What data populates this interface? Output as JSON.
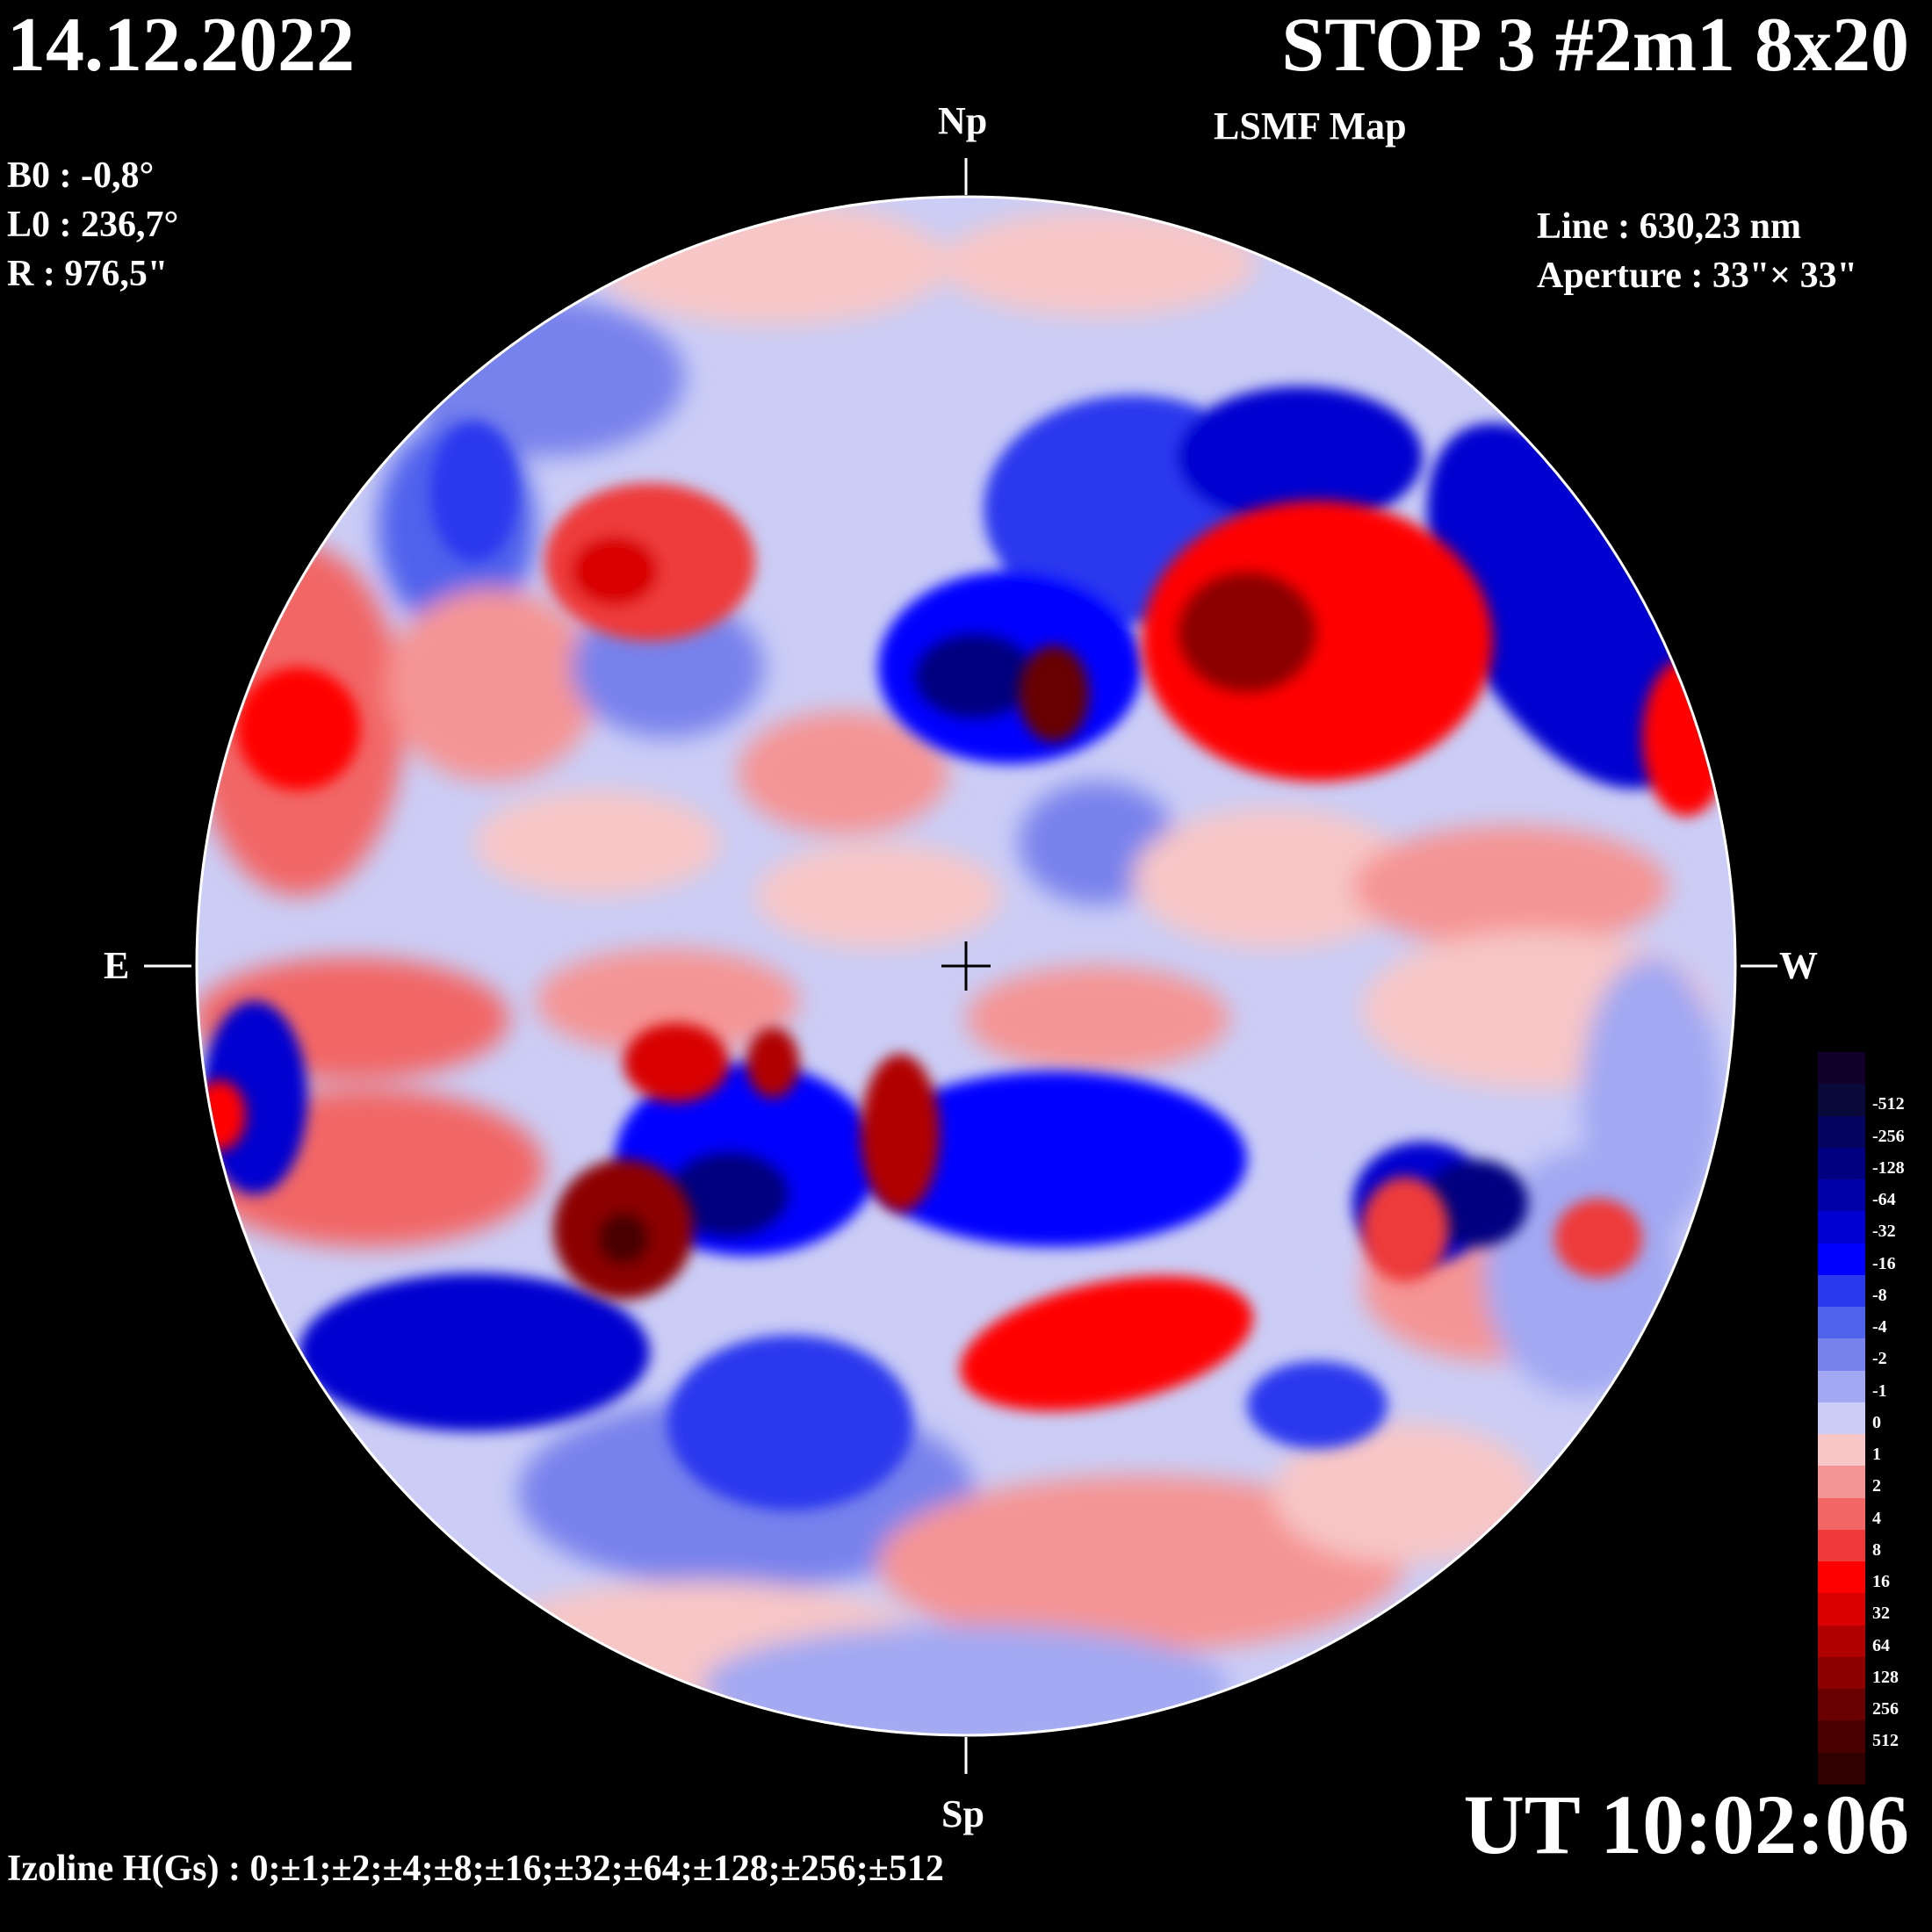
{
  "date": "14.12.2022",
  "title": "STOP 3 #2m1 8x20",
  "subtitle": "LSMF  Map",
  "params": {
    "b0": "B0 : -0,8°",
    "l0": "L0 : 236,7°",
    "r": "R  : 976,5\""
  },
  "line": "Line :  630,23 nm",
  "aperture": "Aperture : 33\"× 33\"",
  "directions": {
    "north": "Np",
    "south": "Sp",
    "east": "E",
    "west": "W"
  },
  "ut": "UT 10:02:06",
  "izoline": "Izoline H(Gs) : 0;±1;±2;±4;±8;±16;±32;±64;±128;±256;±512",
  "legend": [
    {
      "label": "",
      "color": "#12002a"
    },
    {
      "label": "-512",
      "color": "#0a0a3a"
    },
    {
      "label": "-256",
      "color": "#050560"
    },
    {
      "label": "-128",
      "color": "#000080"
    },
    {
      "label": "-64",
      "color": "#0000a8"
    },
    {
      "label": "-32",
      "color": "#0000d0"
    },
    {
      "label": "-16",
      "color": "#0000ff"
    },
    {
      "label": "-8",
      "color": "#2a38ee"
    },
    {
      "label": "-4",
      "color": "#4f62ec"
    },
    {
      "label": "-2",
      "color": "#7882ec"
    },
    {
      "label": "-1",
      "color": "#a2a8f2"
    },
    {
      "label": "0",
      "color": "#cbcdf6"
    },
    {
      "label": "1",
      "color": "#f7c6c6"
    },
    {
      "label": "2",
      "color": "#f59494"
    },
    {
      "label": "4",
      "color": "#f26666"
    },
    {
      "label": "8",
      "color": "#ee3a3a"
    },
    {
      "label": "16",
      "color": "#ff0000"
    },
    {
      "label": "32",
      "color": "#d80000"
    },
    {
      "label": "64",
      "color": "#b00000"
    },
    {
      "label": "128",
      "color": "#8c0000"
    },
    {
      "label": "256",
      "color": "#680000"
    },
    {
      "label": "512",
      "color": "#4a0000"
    },
    {
      "label": "",
      "color": "#300000"
    }
  ]
}
